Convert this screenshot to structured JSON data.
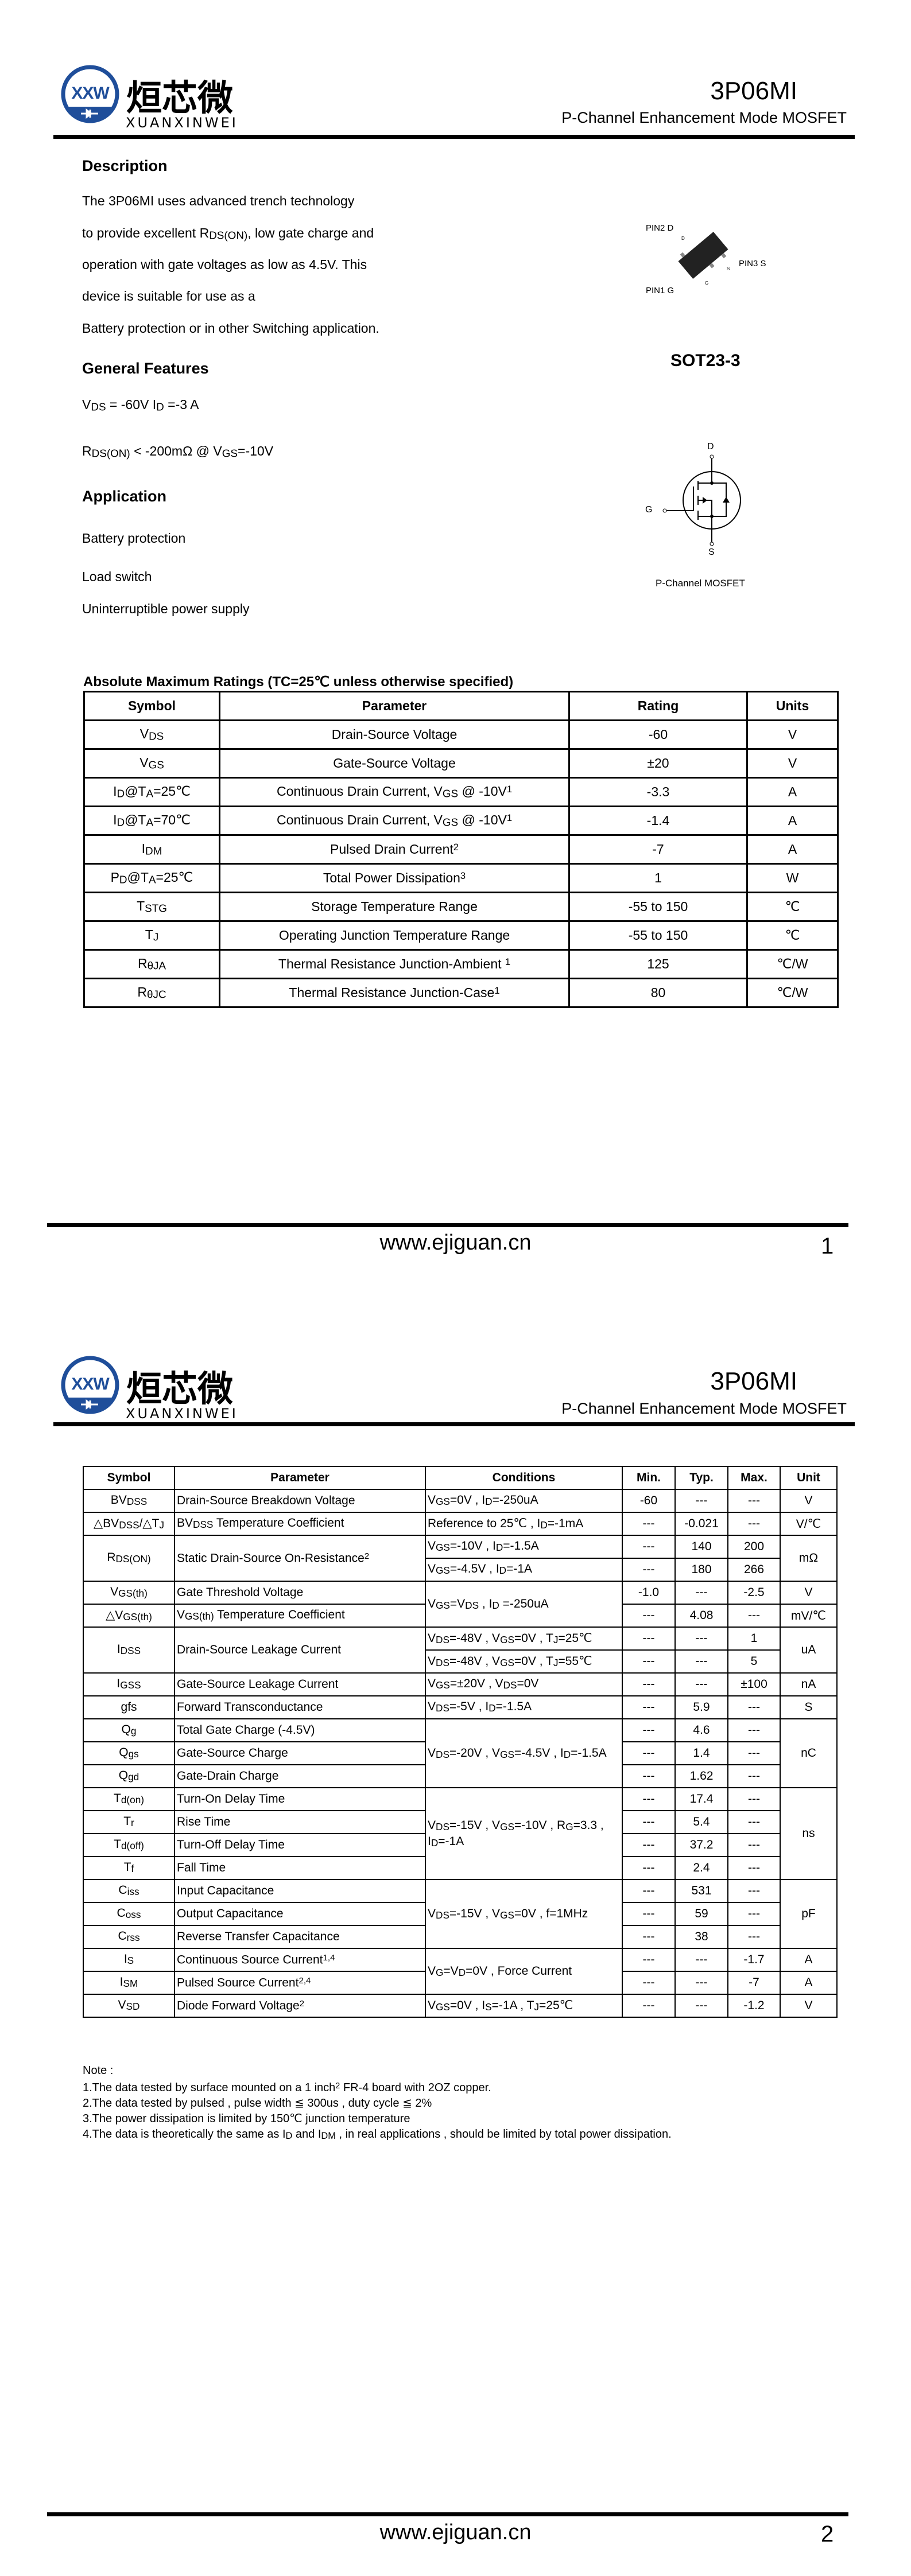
{
  "brand": {
    "name_cn": "烜芯微",
    "name_en": "XUANXINWEI",
    "mark": "XXW",
    "colors": {
      "blue": "#1f4e9a",
      "green": "#3aaa35"
    }
  },
  "header": {
    "part": "3P06MI",
    "subtitle": "P-Channel Enhancement Mode MOSFET"
  },
  "page1": {
    "description": {
      "heading": "Description",
      "lines": [
        "The  3P06MI          uses advanced trench technology",
        "to provide excellent R_{DS(ON)}, low gate charge and",
        "operation with gate voltages as low as 4.5V. This",
        "device is suitable for use as a",
        "Battery protection or in other Switching application."
      ]
    },
    "features": {
      "heading": "General Features",
      "lines": [
        "V_{DS} = -60V  I_{D} =-3 A",
        "R_{DS(ON)} < -200mΩ @ V_{GS}=-10V"
      ]
    },
    "application": {
      "heading": "Application",
      "items": [
        "Battery protection",
        "Load switch",
        "Uninterruptible power supply"
      ]
    },
    "package": {
      "pin2": "PIN2 D",
      "pin3": "PIN3 S",
      "pin1": "PIN1 G",
      "name": "SOT23-3",
      "pin_d": "D",
      "pin_s": "S",
      "pin_g": "G"
    },
    "symbol": {
      "d": "D",
      "g": "G",
      "s": "S",
      "caption": "P-Channel MOSFET"
    },
    "abs_max": {
      "title": "Absolute Maximum Ratings (TC=25℃ unless otherwise specified)",
      "columns": [
        "Symbol",
        "Parameter",
        "Rating",
        "Units"
      ],
      "rows": [
        [
          "V_{DS}",
          "Drain-Source Voltage",
          "-60",
          "V"
        ],
        [
          "V_{GS}",
          "Gate-Source Voltage",
          "±20",
          "V"
        ],
        [
          "I_{D}@T_{A}=25℃",
          "Continuous Drain Current, V_{GS} @ -10V^{1}",
          "-3.3",
          "A"
        ],
        [
          "I_{D}@T_{A}=70℃",
          "Continuous Drain Current, V_{GS} @ -10V^{1}",
          "-1.4",
          "A"
        ],
        [
          "I_{DM}",
          "Pulsed Drain Current^{2}",
          "-7",
          "A"
        ],
        [
          "P_{D}@T_{A}=25℃",
          "Total Power Dissipation^{3}",
          "1",
          "W"
        ],
        [
          "T_{STG}",
          "Storage Temperature Range",
          "-55 to 150",
          "℃"
        ],
        [
          "T_{J}",
          "Operating Junction Temperature Range",
          "-55 to 150",
          "℃"
        ],
        [
          "R_{θJA}",
          "Thermal Resistance Junction-Ambient ^{1}",
          "125",
          "℃/W"
        ],
        [
          "R_{θJC}",
          "Thermal Resistance Junction-Case^{1}",
          "80",
          "℃/W"
        ]
      ]
    },
    "footer": {
      "url": "www.ejiguan.cn",
      "page": "1"
    }
  },
  "page2": {
    "electrical": {
      "columns": [
        "Symbol",
        "Parameter",
        "Conditions",
        "Min.",
        "Typ.",
        "Max.",
        "Unit"
      ],
      "rows": [
        {
          "sym": "BV_{DSS}",
          "param": "Drain-Source Breakdown Voltage",
          "cond": "V_{GS}=0V , I_{D}=-250uA",
          "min": "-60",
          "typ": "---",
          "max": "---",
          "unit": "V"
        },
        {
          "sym": "△BV_{DSS}/△T_{J}",
          "param": "BV_{DSS} Temperature Coefficient",
          "cond": "Reference to 25℃ , I_{D}=-1mA",
          "min": "---",
          "typ": "-0.021",
          "max": "---",
          "unit": "V/℃"
        },
        {
          "sym": "R_{DS(ON)}",
          "symSpan": 2,
          "param": "Static Drain-Source On-Resistance^{2}",
          "paramSpan": 2,
          "cond": "V_{GS}=-10V , I_{D}=-1.5A",
          "min": "---",
          "typ": "140",
          "max": "200",
          "unit": "mΩ",
          "unitSpan": 2
        },
        {
          "cond": "V_{GS}=-4.5V , I_{D}=-1A",
          "min": "---",
          "typ": "180",
          "max": "266"
        },
        {
          "sym": "V_{GS(th)}",
          "param": "Gate Threshold Voltage",
          "cond": "V_{GS}=V_{DS} , I_{D} =-250uA",
          "condSpan": 2,
          "min": "-1.0",
          "typ": "---",
          "max": "-2.5",
          "unit": "V"
        },
        {
          "sym": "△V_{GS(th)}",
          "param": "V_{GS(th)} Temperature Coefficient",
          "min": "---",
          "typ": "4.08",
          "max": "---",
          "unit": "mV/℃"
        },
        {
          "sym": "I_{DSS}",
          "symSpan": 2,
          "param": "Drain-Source Leakage Current",
          "paramSpan": 2,
          "cond": "V_{DS}=-48V , V_{GS}=0V , T_{J}=25℃",
          "min": "---",
          "typ": "---",
          "max": "1",
          "unit": "uA",
          "unitSpan": 2
        },
        {
          "cond": "V_{DS}=-48V , V_{GS}=0V , T_{J}=55℃",
          "min": "---",
          "typ": "---",
          "max": "5"
        },
        {
          "sym": "I_{GSS}",
          "param": "Gate-Source Leakage Current",
          "cond": "V_{GS}=±20V , V_{DS}=0V",
          "min": "---",
          "typ": "---",
          "max": "±100",
          "unit": "nA"
        },
        {
          "sym": "gfs",
          "param": "Forward Transconductance",
          "cond": "V_{DS}=-5V , I_{D}=-1.5A",
          "min": "---",
          "typ": "5.9",
          "max": "---",
          "unit": "S"
        },
        {
          "sym": "Q_{g}",
          "param": "Total Gate Charge (-4.5V)",
          "cond": "V_{DS}=-20V , V_{GS}=-4.5V , I_{D}=-1.5A",
          "condSpan": 3,
          "min": "---",
          "typ": "4.6",
          "max": "---",
          "unit": "nC",
          "unitSpan": 3
        },
        {
          "sym": "Q_{gs}",
          "param": "Gate-Source Charge",
          "min": "---",
          "typ": "1.4",
          "max": "---"
        },
        {
          "sym": "Q_{gd}",
          "param": "Gate-Drain Charge",
          "min": "---",
          "typ": "1.62",
          "max": "---"
        },
        {
          "sym": "T_{d(on)}",
          "param": "Turn-On Delay Time",
          "cond": "V_{DS}=-15V      ,      V_{GS}=-10V      , R_{G}=3.3    , I_{D}=-1A",
          "condSpan": 4,
          "min": "---",
          "typ": "17.4",
          "max": "---",
          "unit": "ns",
          "unitSpan": 4
        },
        {
          "sym": "T_{r}",
          "param": "Rise Time",
          "min": "---",
          "typ": "5.4",
          "max": "---"
        },
        {
          "sym": "T_{d(off)}",
          "param": "Turn-Off Delay Time",
          "min": "---",
          "typ": "37.2",
          "max": "---"
        },
        {
          "sym": "T_{f}",
          "param": "Fall Time",
          "min": "---",
          "typ": "2.4",
          "max": "---"
        },
        {
          "sym": "C_{iss}",
          "param": "Input Capacitance",
          "cond": "V_{DS}=-15V , V_{GS}=0V , f=1MHz",
          "condSpan": 3,
          "min": "---",
          "typ": "531",
          "max": "---",
          "unit": "pF",
          "unitSpan": 3
        },
        {
          "sym": "C_{oss}",
          "param": "Output Capacitance",
          "min": "---",
          "typ": "59",
          "max": "---"
        },
        {
          "sym": "C_{rss}",
          "param": "Reverse Transfer Capacitance",
          "min": "---",
          "typ": "38",
          "max": "---"
        },
        {
          "sym": "I_{S}",
          "param": "Continuous Source Current^{1,4}",
          "cond": "V_{G}=V_{D}=0V , Force Current",
          "condSpan": 2,
          "min": "---",
          "typ": "---",
          "max": "-1.7",
          "unit": "A"
        },
        {
          "sym": "I_{SM}",
          "param": "Pulsed Source Current^{2,4}",
          "min": "---",
          "typ": "---",
          "max": "-7",
          "unit": "A"
        },
        {
          "sym": "V_{SD}",
          "param": "Diode Forward Voltage^{2}",
          "cond": "V_{GS}=0V , I_{S}=-1A , T_{J}=25℃",
          "min": "---",
          "typ": "---",
          "max": "-1.2",
          "unit": "V"
        }
      ]
    },
    "notes": [
      "Note :",
      "1.The data tested by surface mounted on a 1 inch^{2} FR-4 board with 2OZ copper.",
      "2.The data tested by pulsed , pulse width  ≦ 300us , duty cycle  ≦ 2%",
      "3.The power dissipation is limited by 150℃  junction temperature",
      "4.The data is theoretically the same as I_{D} and I_{DM} , in real applications , should be limited by total power dissipation."
    ],
    "footer": {
      "url": "www.ejiguan.cn",
      "page": "2"
    }
  }
}
